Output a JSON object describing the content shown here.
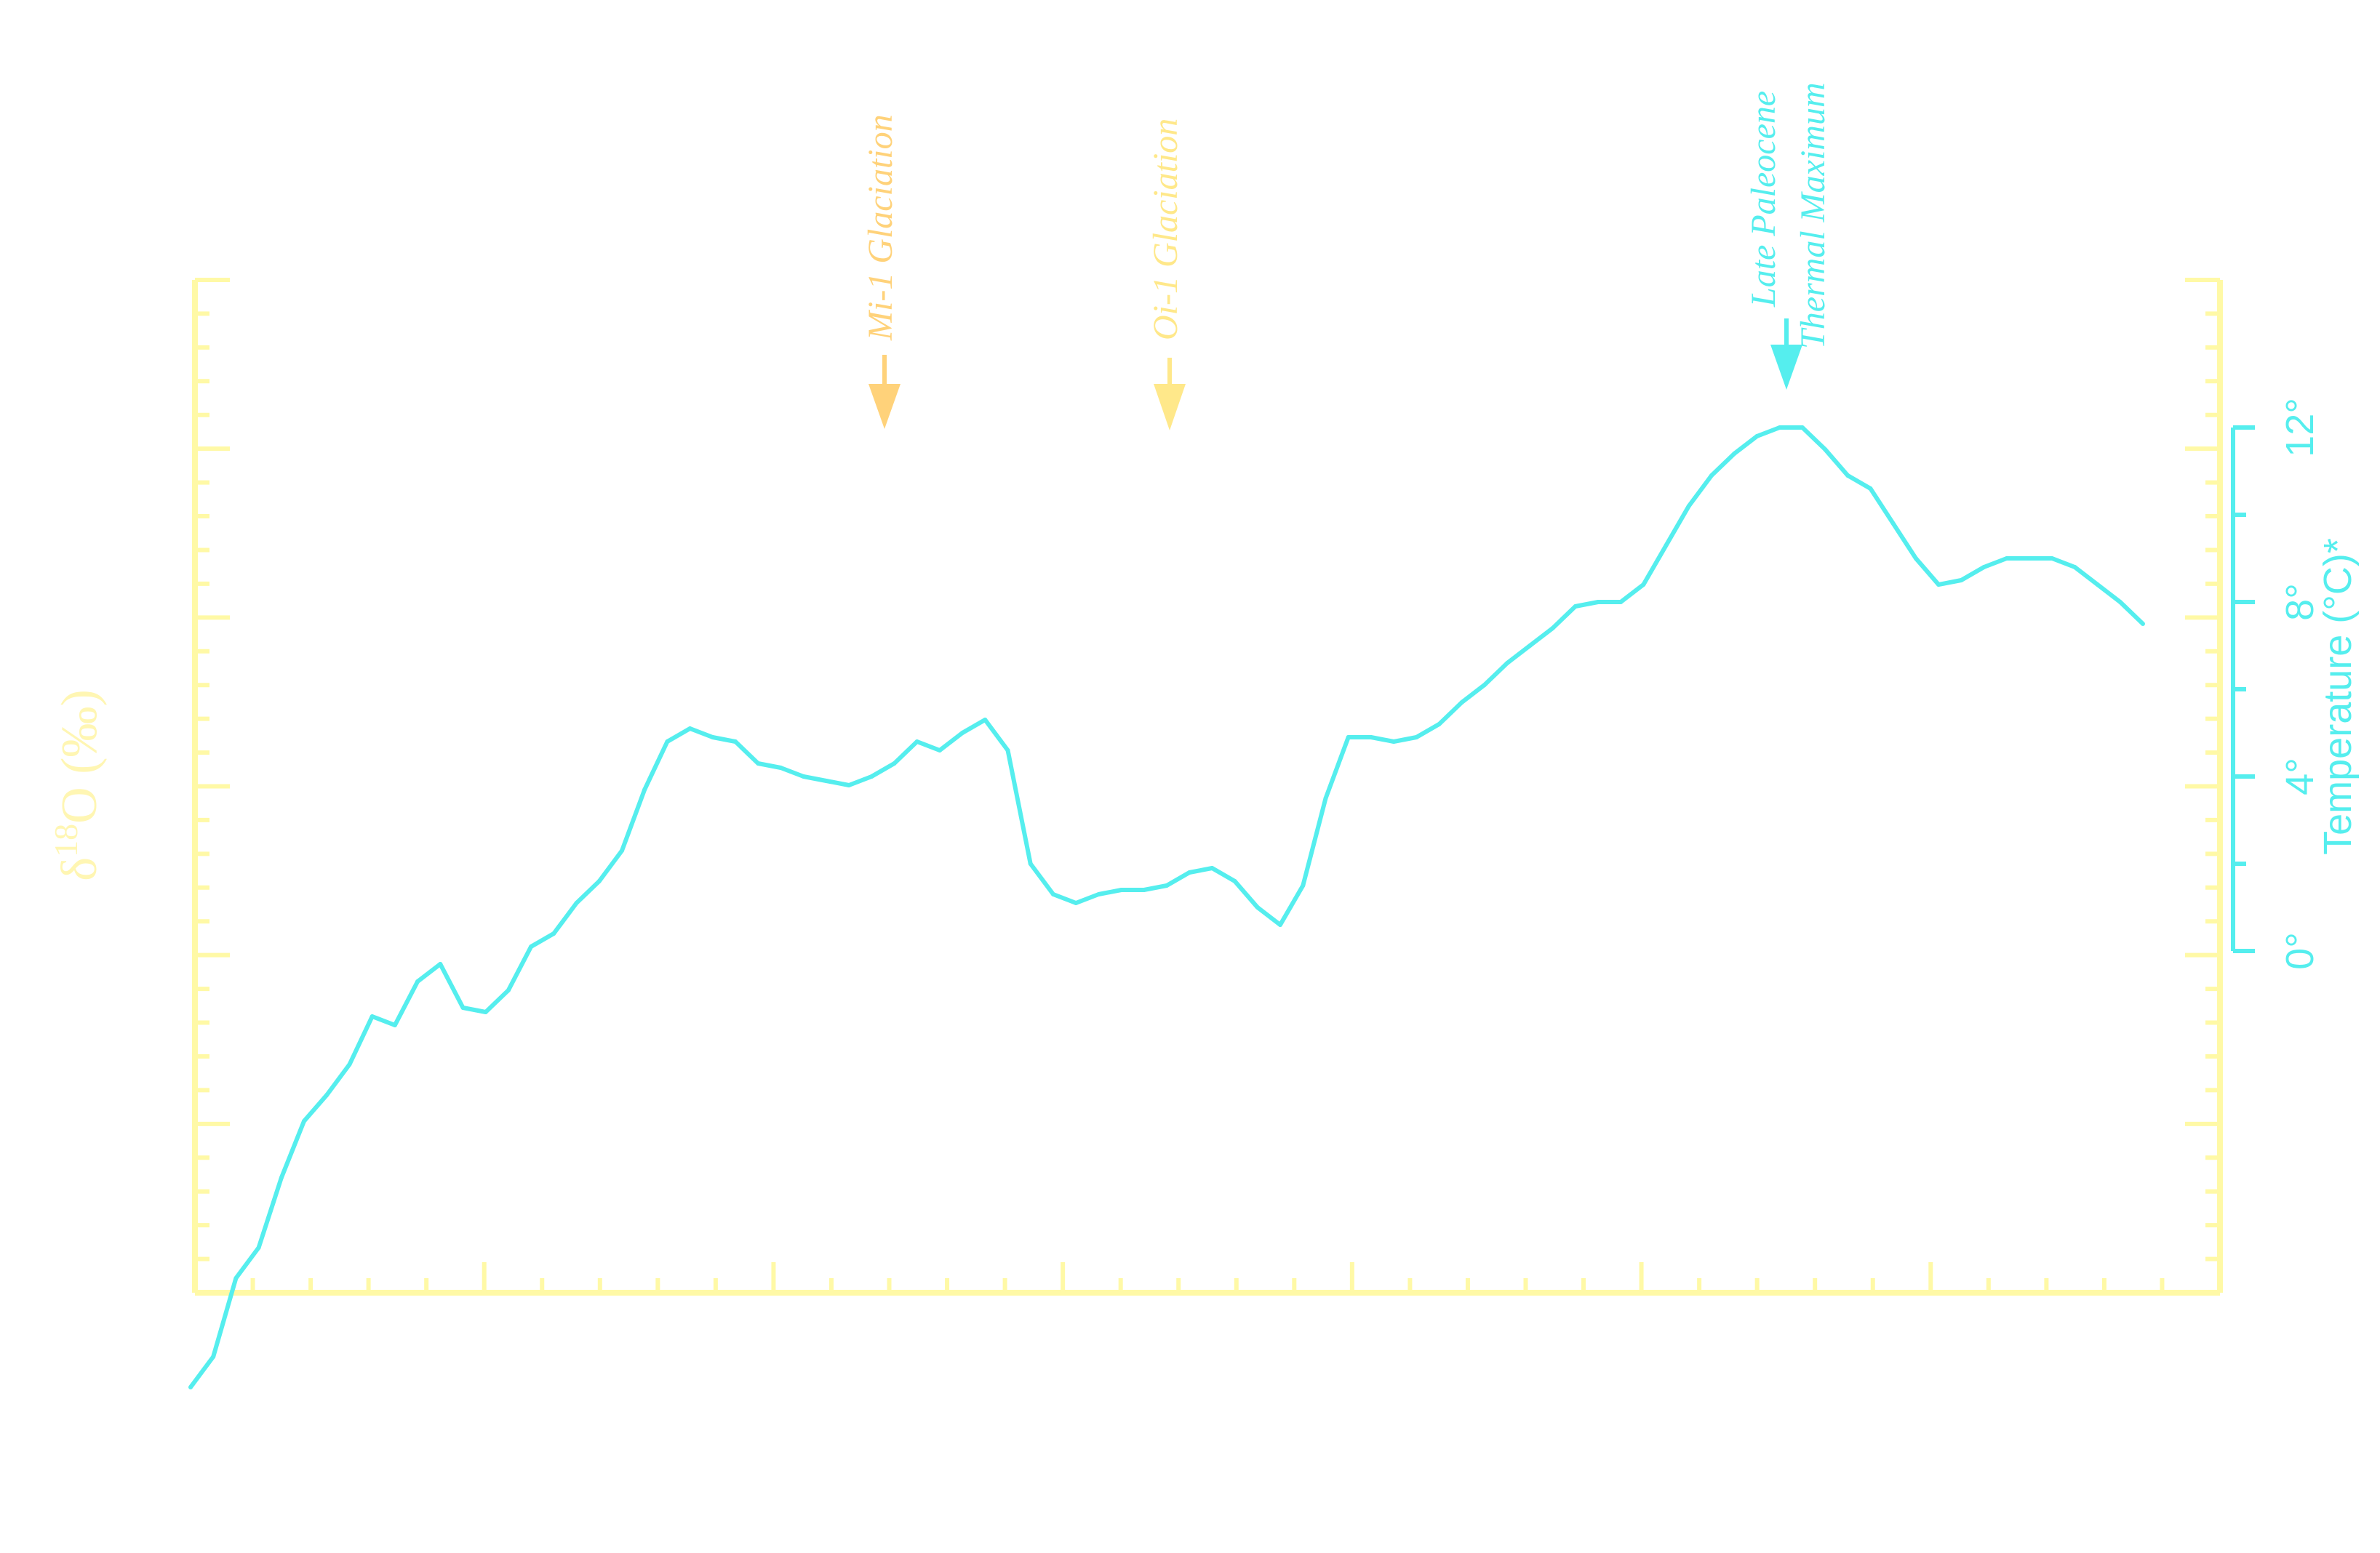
{
  "colors": {
    "left_axis": "#fff9a6",
    "temperature": "#55eeee",
    "mi1": "#ffd27a",
    "oi1": "#ffe88a",
    "petm": "#55eeee",
    "background": "#ffffff"
  },
  "chart_data": {
    "type": "line",
    "title": "",
    "x_direction": "unlabeled",
    "left_axis": {
      "label": "δ18O (‰)",
      "label_main": "δ",
      "label_sup": "18",
      "label_rest": "O (‰)"
    },
    "right_axis": {
      "label": "Temperature (°C)*",
      "ticks": [
        "0°",
        "4°",
        "8°",
        "12°"
      ],
      "tick_values": [
        0,
        4,
        8,
        12
      ],
      "range": [
        0,
        12
      ]
    },
    "series": [
      {
        "values": [
          -10.0,
          -9.3,
          -7.5,
          -6.8,
          -5.2,
          -3.9,
          -3.3,
          -2.6,
          -1.5,
          -1.7,
          -0.7,
          -0.3,
          -1.3,
          -1.4,
          -0.9,
          0.1,
          0.4,
          1.1,
          1.6,
          2.3,
          3.7,
          4.8,
          5.1,
          4.9,
          4.8,
          4.3,
          4.2,
          4.0,
          3.9,
          3.8,
          4.0,
          4.3,
          4.8,
          4.6,
          5.0,
          5.3,
          4.6,
          2.0,
          1.3,
          1.1,
          1.3,
          1.4,
          1.4,
          1.5,
          1.8,
          1.9,
          1.6,
          1.0,
          0.6,
          1.5,
          3.5,
          4.9,
          4.9,
          4.8,
          4.9,
          5.2,
          5.7,
          6.1,
          6.6,
          7.0,
          7.4,
          7.9,
          8.0,
          8.0,
          8.4,
          9.3,
          10.2,
          10.9,
          11.4,
          11.8,
          12.0,
          12.0,
          11.5,
          10.9,
          10.6,
          9.8,
          9.0,
          8.4,
          8.5,
          8.8,
          9.0,
          9.0,
          9.0,
          8.8,
          8.4,
          8.0,
          7.5
        ],
        "unit": "°C"
      }
    ],
    "annotations": [
      {
        "text": "Mi-1 Glaciation",
        "color": "#ffd27a"
      },
      {
        "text": "Oi-1 Glaciation",
        "color": "#ffe88a"
      },
      {
        "text": "Late Paleocene",
        "text2": "Thermal Maximum",
        "color": "#55eeee"
      }
    ]
  }
}
